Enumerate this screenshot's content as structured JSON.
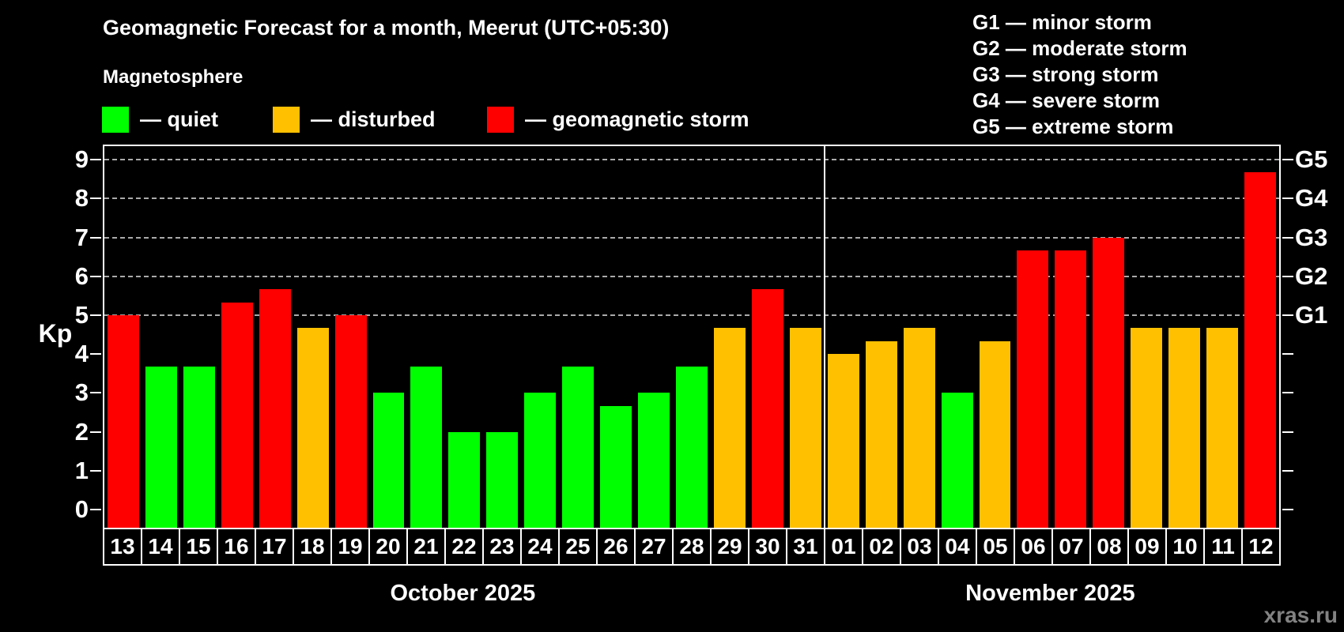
{
  "colors": {
    "quiet": "#00ff00",
    "disturbed": "#ffc000",
    "storm": "#ff0000",
    "grid": "#aaaaaa",
    "axis": "#ffffff",
    "watermark": "#828282",
    "background": "#000000"
  },
  "header": {
    "title": "Geomagnetic Forecast for a month, Meerut (UTC+05:30)",
    "subtitle": "Magnetosphere",
    "legend": [
      {
        "status": "quiet",
        "label": "— quiet"
      },
      {
        "status": "disturbed",
        "label": "— disturbed"
      },
      {
        "status": "storm",
        "label": "— geomagnetic storm"
      }
    ],
    "g_legend": [
      "G1 — minor storm",
      "G2 — moderate storm",
      "G3 — strong storm",
      "G4 — severe storm",
      "G5 — extreme storm"
    ]
  },
  "chart_data": {
    "type": "bar",
    "title": "Geomagnetic Forecast for a month, Meerut (UTC+05:30)",
    "ylabel": "Kp",
    "ylim": [
      0,
      9
    ],
    "yticks": [
      0,
      1,
      2,
      3,
      4,
      5,
      6,
      7,
      8,
      9
    ],
    "gridlines": [
      5,
      6,
      7,
      8,
      9
    ],
    "grid": "dashed",
    "legend_position": "top",
    "right_axis_labels": [
      {
        "kp": 5,
        "label": "G1"
      },
      {
        "kp": 6,
        "label": "G2"
      },
      {
        "kp": 7,
        "label": "G3"
      },
      {
        "kp": 8,
        "label": "G4"
      },
      {
        "kp": 9,
        "label": "G5"
      }
    ],
    "months": [
      {
        "label": "October 2025",
        "days": 19
      },
      {
        "label": "November 2025",
        "days": 12
      }
    ],
    "days": [
      {
        "day": "13",
        "month": "October",
        "value": 5,
        "status": "storm"
      },
      {
        "day": "14",
        "month": "October",
        "value": 3.67,
        "status": "quiet"
      },
      {
        "day": "15",
        "month": "October",
        "value": 3.67,
        "status": "quiet"
      },
      {
        "day": "16",
        "month": "October",
        "value": 5.33,
        "status": "storm"
      },
      {
        "day": "17",
        "month": "October",
        "value": 5.67,
        "status": "storm"
      },
      {
        "day": "18",
        "month": "October",
        "value": 4.67,
        "status": "disturbed"
      },
      {
        "day": "19",
        "month": "October",
        "value": 5,
        "status": "storm"
      },
      {
        "day": "20",
        "month": "October",
        "value": 3,
        "status": "quiet"
      },
      {
        "day": "21",
        "month": "October",
        "value": 3.67,
        "status": "quiet"
      },
      {
        "day": "22",
        "month": "October",
        "value": 2,
        "status": "quiet"
      },
      {
        "day": "23",
        "month": "October",
        "value": 2,
        "status": "quiet"
      },
      {
        "day": "24",
        "month": "October",
        "value": 3,
        "status": "quiet"
      },
      {
        "day": "25",
        "month": "October",
        "value": 3.67,
        "status": "quiet"
      },
      {
        "day": "26",
        "month": "October",
        "value": 2.67,
        "status": "quiet"
      },
      {
        "day": "27",
        "month": "October",
        "value": 3,
        "status": "quiet"
      },
      {
        "day": "28",
        "month": "October",
        "value": 3.67,
        "status": "quiet"
      },
      {
        "day": "29",
        "month": "October",
        "value": 4.67,
        "status": "disturbed"
      },
      {
        "day": "30",
        "month": "October",
        "value": 5.67,
        "status": "storm"
      },
      {
        "day": "31",
        "month": "October",
        "value": 4.67,
        "status": "disturbed"
      },
      {
        "day": "01",
        "month": "November",
        "value": 4,
        "status": "disturbed"
      },
      {
        "day": "02",
        "month": "November",
        "value": 4.33,
        "status": "disturbed"
      },
      {
        "day": "03",
        "month": "November",
        "value": 4.67,
        "status": "disturbed"
      },
      {
        "day": "04",
        "month": "November",
        "value": 3,
        "status": "quiet"
      },
      {
        "day": "05",
        "month": "November",
        "value": 4.33,
        "status": "disturbed"
      },
      {
        "day": "06",
        "month": "November",
        "value": 6.67,
        "status": "storm"
      },
      {
        "day": "07",
        "month": "November",
        "value": 6.67,
        "status": "storm"
      },
      {
        "day": "08",
        "month": "November",
        "value": 7,
        "status": "storm"
      },
      {
        "day": "09",
        "month": "November",
        "value": 4.67,
        "status": "disturbed"
      },
      {
        "day": "10",
        "month": "November",
        "value": 4.67,
        "status": "disturbed"
      },
      {
        "day": "11",
        "month": "November",
        "value": 4.67,
        "status": "disturbed"
      },
      {
        "day": "12",
        "month": "November",
        "value": 8.67,
        "status": "storm"
      }
    ]
  },
  "watermark": "xras.ru"
}
